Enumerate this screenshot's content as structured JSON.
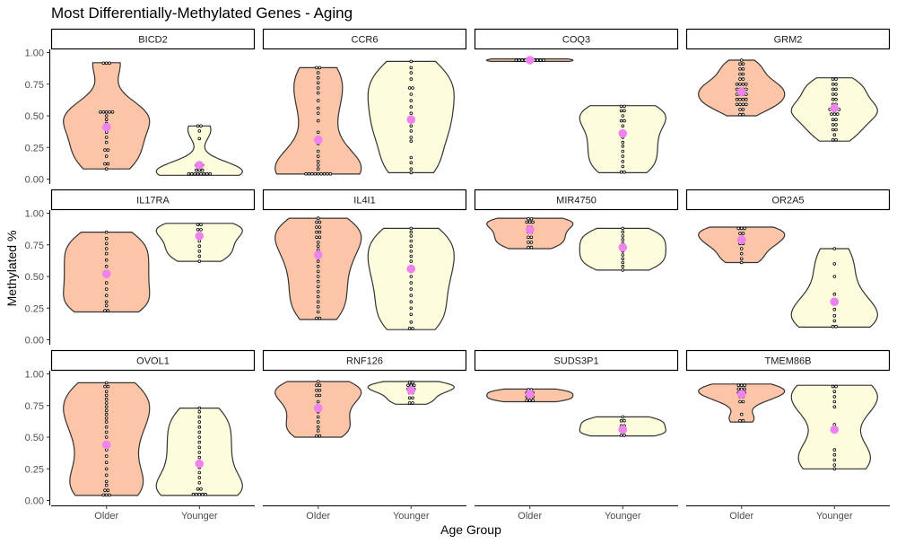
{
  "chart_data": {
    "type": "violin",
    "title": "Most Differentially-Methylated Genes - Aging",
    "xlabel": "Age Group",
    "ylabel": "Methylated %",
    "categories": [
      "Older",
      "Younger"
    ],
    "ylim": [
      0,
      1
    ],
    "yticks": [
      "0.00",
      "0.25",
      "0.50",
      "0.75",
      "1.00"
    ],
    "colors": {
      "Older": "#fcc5a7",
      "Younger": "#fdfddd",
      "mean": "#ee82ee",
      "outline": "#333333"
    },
    "grid": false,
    "legend": "none",
    "panels": [
      {
        "gene": "BICD2",
        "older": {
          "mean": 0.41,
          "points": [
            0.92,
            0.92,
            0.91,
            0.53,
            0.53,
            0.53,
            0.5,
            0.44,
            0.37,
            0.33,
            0.29,
            0.24,
            0.22,
            0.18,
            0.13,
            0.11,
            0.08,
            0.53,
            0.53,
            0.47
          ]
        },
        "younger": {
          "mean": 0.11,
          "points": [
            0.42,
            0.42,
            0.38,
            0.32,
            0.12,
            0.11,
            0.1,
            0.08,
            0.07,
            0.06,
            0.05,
            0.05,
            0.04,
            0.04,
            0.04,
            0.04,
            0.04,
            0.03
          ]
        }
      },
      {
        "gene": "CCR6",
        "older": {
          "mean": 0.31,
          "points": [
            0.88,
            0.88,
            0.84,
            0.8,
            0.76,
            0.72,
            0.68,
            0.62,
            0.56,
            0.52,
            0.46,
            0.37,
            0.28,
            0.22,
            0.18,
            0.14,
            0.11,
            0.08,
            0.05,
            0.04,
            0.04,
            0.04,
            0.04,
            0.04,
            0.04,
            0.04,
            0.04
          ]
        },
        "younger": {
          "mean": 0.47,
          "points": [
            0.93,
            0.88,
            0.84,
            0.79,
            0.72,
            0.72,
            0.67,
            0.62,
            0.57,
            0.52,
            0.47,
            0.42,
            0.38,
            0.33,
            0.3,
            0.17,
            0.13,
            0.08,
            0.05
          ]
        }
      },
      {
        "gene": "COQ3",
        "older": {
          "mean": 0.94,
          "points": [
            0.95,
            0.94,
            0.94,
            0.94,
            0.94,
            0.93,
            0.93,
            0.94,
            0.94,
            0.94
          ]
        },
        "younger": {
          "mean": 0.36,
          "points": [
            0.58,
            0.57,
            0.55,
            0.53,
            0.5,
            0.47,
            0.45,
            0.42,
            0.37,
            0.33,
            0.29,
            0.26,
            0.22,
            0.18,
            0.14,
            0.1,
            0.06,
            0.05
          ]
        }
      },
      {
        "gene": "GRM2",
        "older": {
          "mean": 0.69,
          "points": [
            0.94,
            0.92,
            0.9,
            0.88,
            0.86,
            0.84,
            0.82,
            0.8,
            0.78,
            0.76,
            0.74,
            0.72,
            0.7,
            0.68,
            0.66,
            0.64,
            0.62,
            0.6,
            0.58,
            0.56,
            0.54,
            0.52,
            0.5,
            0.7,
            0.68,
            0.66,
            0.64,
            0.62,
            0.72,
            0.74,
            0.76,
            0.6,
            0.58
          ]
        },
        "younger": {
          "mean": 0.56,
          "points": [
            0.8,
            0.78,
            0.76,
            0.74,
            0.72,
            0.7,
            0.68,
            0.66,
            0.64,
            0.62,
            0.6,
            0.58,
            0.56,
            0.54,
            0.52,
            0.5,
            0.48,
            0.46,
            0.44,
            0.42,
            0.4,
            0.38,
            0.35,
            0.32,
            0.3,
            0.56,
            0.54,
            0.52
          ]
        }
      },
      {
        "gene": "IL17RA",
        "older": {
          "mean": 0.52,
          "points": [
            0.85,
            0.8,
            0.76,
            0.72,
            0.68,
            0.63,
            0.58,
            0.53,
            0.5,
            0.45,
            0.4,
            0.35,
            0.3,
            0.27,
            0.24,
            0.22
          ]
        },
        "younger": {
          "mean": 0.82,
          "points": [
            0.92,
            0.9,
            0.88,
            0.86,
            0.82,
            0.78,
            0.74,
            0.7,
            0.66,
            0.62
          ]
        }
      },
      {
        "gene": "IL4I1",
        "older": {
          "mean": 0.67,
          "points": [
            0.96,
            0.94,
            0.92,
            0.9,
            0.88,
            0.86,
            0.84,
            0.82,
            0.8,
            0.77,
            0.74,
            0.71,
            0.68,
            0.65,
            0.62,
            0.58,
            0.54,
            0.5,
            0.46,
            0.42,
            0.38,
            0.34,
            0.3,
            0.26,
            0.22,
            0.18,
            0.16
          ]
        },
        "younger": {
          "mean": 0.56,
          "points": [
            0.88,
            0.85,
            0.82,
            0.78,
            0.74,
            0.7,
            0.66,
            0.62,
            0.58,
            0.54,
            0.5,
            0.45,
            0.4,
            0.35,
            0.3,
            0.25,
            0.2,
            0.14,
            0.1,
            0.08
          ]
        }
      },
      {
        "gene": "MIR4750",
        "older": {
          "mean": 0.87,
          "points": [
            0.96,
            0.95,
            0.94,
            0.93,
            0.92,
            0.9,
            0.88,
            0.86,
            0.84,
            0.82,
            0.8,
            0.78,
            0.76,
            0.74,
            0.72
          ]
        },
        "younger": {
          "mean": 0.73,
          "points": [
            0.88,
            0.85,
            0.82,
            0.79,
            0.76,
            0.73,
            0.7,
            0.67,
            0.64,
            0.61,
            0.58,
            0.55
          ]
        }
      },
      {
        "gene": "OR2A5",
        "older": {
          "mean": 0.79,
          "points": [
            0.89,
            0.88,
            0.87,
            0.85,
            0.83,
            0.81,
            0.79,
            0.77,
            0.75,
            0.72,
            0.68,
            0.64,
            0.61
          ]
        },
        "younger": {
          "mean": 0.3,
          "points": [
            0.72,
            0.6,
            0.5,
            0.36,
            0.29,
            0.24,
            0.19,
            0.15,
            0.11,
            0.1
          ]
        }
      },
      {
        "gene": "OVOL1",
        "older": {
          "mean": 0.44,
          "points": [
            0.93,
            0.91,
            0.89,
            0.86,
            0.83,
            0.8,
            0.77,
            0.74,
            0.71,
            0.68,
            0.65,
            0.62,
            0.58,
            0.54,
            0.5,
            0.45,
            0.4,
            0.35,
            0.3,
            0.25,
            0.2,
            0.15,
            0.12,
            0.09,
            0.07,
            0.05,
            0.04,
            0.04
          ]
        },
        "younger": {
          "mean": 0.29,
          "points": [
            0.73,
            0.7,
            0.66,
            0.62,
            0.58,
            0.54,
            0.5,
            0.46,
            0.42,
            0.38,
            0.34,
            0.3,
            0.26,
            0.22,
            0.18,
            0.14,
            0.1,
            0.08,
            0.06,
            0.05,
            0.05,
            0.04,
            0.04
          ]
        }
      },
      {
        "gene": "RNF126",
        "older": {
          "mean": 0.73,
          "points": [
            0.94,
            0.92,
            0.9,
            0.88,
            0.86,
            0.84,
            0.82,
            0.78,
            0.74,
            0.7,
            0.66,
            0.62,
            0.58,
            0.55,
            0.52,
            0.5
          ]
        },
        "younger": {
          "mean": 0.87,
          "points": [
            0.94,
            0.93,
            0.92,
            0.91,
            0.9,
            0.89,
            0.88,
            0.87,
            0.86,
            0.84,
            0.82,
            0.8,
            0.78,
            0.76
          ]
        }
      },
      {
        "gene": "SUDS3P1",
        "older": {
          "mean": 0.84,
          "points": [
            0.88,
            0.87,
            0.86,
            0.85,
            0.84,
            0.83,
            0.82,
            0.81,
            0.8,
            0.79,
            0.78
          ]
        },
        "younger": {
          "mean": 0.56,
          "points": [
            0.66,
            0.64,
            0.62,
            0.6,
            0.58,
            0.56,
            0.54,
            0.52,
            0.51
          ]
        }
      },
      {
        "gene": "TMEM86B",
        "older": {
          "mean": 0.84,
          "points": [
            0.92,
            0.91,
            0.9,
            0.89,
            0.88,
            0.87,
            0.86,
            0.85,
            0.84,
            0.83,
            0.81,
            0.79,
            0.77,
            0.68,
            0.64,
            0.62
          ]
        },
        "younger": {
          "mean": 0.56,
          "points": [
            0.91,
            0.89,
            0.86,
            0.82,
            0.78,
            0.74,
            0.6,
            0.4,
            0.36,
            0.32,
            0.28,
            0.25
          ]
        }
      }
    ]
  }
}
